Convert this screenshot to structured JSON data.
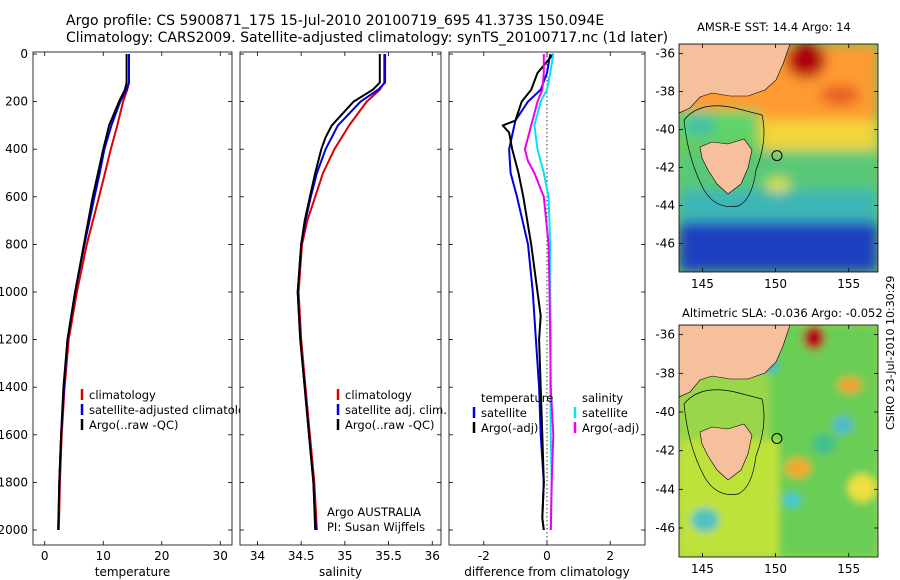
{
  "header": {
    "line1": "Argo profile: CS 5900871_175 15-Jul-2010 20100719_695 41.373S 150.094E",
    "line2": "Climatology: CARS2009. Satellite-adjusted climatology: synTS_20100717.nc (1d later)"
  },
  "maps": {
    "sst_title": "AMSR-E SST: 14.4 Argo: 14",
    "sla_title": "Altimetric SLA: -0.036 Argo: -0.052",
    "lat_ticks": [
      "-36",
      "-38",
      "-40",
      "-42",
      "-44",
      "-46"
    ],
    "lon_ticks": [
      "145",
      "150",
      "155"
    ],
    "float_marker": {
      "lon": 150.094,
      "lat": -41.373
    }
  },
  "credit": {
    "stamp": "CSIRO 23-Jul-2010 10:30:29",
    "org": "Argo AUSTRALIA",
    "pi": "PI: Susan Wijffels"
  },
  "colors": {
    "climatology": "#dd0000",
    "satellite_adj": "#0000dd",
    "argo": "#000000",
    "sal_satellite": "#00e5ee",
    "sal_argo": "#ee00ee"
  },
  "chart_data": [
    {
      "type": "line",
      "xlabel": "temperature",
      "xticks": [
        "0",
        "10",
        "20",
        "30"
      ],
      "xlim": [
        -2,
        32
      ],
      "yticks": [
        "0",
        "200",
        "400",
        "600",
        "800",
        "1000",
        "1200",
        "1400",
        "1600",
        "1800",
        "2000"
      ],
      "ylim": [
        0,
        2050
      ],
      "legend": [
        "climatology",
        "satellite-adjusted climatology",
        "Argo(..raw -QC)"
      ],
      "series": [
        {
          "name": "climatology",
          "pressure": [
            0,
            120,
            150,
            200,
            300,
            400,
            500,
            600,
            800,
            1000,
            1200,
            1400,
            1600,
            1800,
            2000
          ],
          "values": [
            14.4,
            14.4,
            14.1,
            13.4,
            12.4,
            11.3,
            10.3,
            9.3,
            7.2,
            5.5,
            4.1,
            3.4,
            2.9,
            2.6,
            2.4
          ]
        },
        {
          "name": "satellite-adjusted climatology",
          "pressure": [
            0,
            120,
            150,
            200,
            300,
            400,
            500,
            600,
            800,
            1000,
            1200,
            1400,
            1600,
            1800,
            2000
          ],
          "values": [
            14.4,
            14.4,
            14.0,
            12.9,
            11.4,
            10.2,
            9.4,
            8.5,
            6.8,
            5.2,
            3.9,
            3.3,
            2.8,
            2.5,
            2.3
          ]
        },
        {
          "name": "Argo(..raw -QC)",
          "pressure": [
            0,
            120,
            150,
            200,
            300,
            350,
            400,
            500,
            600,
            800,
            1000,
            1200,
            1400,
            1600,
            1800,
            2000
          ],
          "values": [
            14.0,
            14.0,
            13.7,
            12.7,
            11.0,
            10.5,
            10.0,
            9.1,
            8.2,
            6.7,
            5.2,
            3.9,
            3.2,
            2.8,
            2.5,
            2.3
          ]
        }
      ]
    },
    {
      "type": "line",
      "xlabel": "salinity",
      "xticks": [
        "34",
        "34.5",
        "35",
        "35.5",
        "36"
      ],
      "xlim": [
        33.8,
        36.1
      ],
      "yticks": [
        "0",
        "200",
        "400",
        "600",
        "800",
        "1000",
        "1200",
        "1400",
        "1600",
        "1800",
        "2000"
      ],
      "ylim": [
        0,
        2050
      ],
      "legend": [
        "climatology",
        "satellite adj. clim.",
        "Argo(..raw -QC)"
      ],
      "series": [
        {
          "name": "climatology",
          "pressure": [
            0,
            120,
            150,
            200,
            300,
            400,
            500,
            600,
            700,
            800,
            1000,
            1200,
            1400,
            1600,
            1800,
            2000
          ],
          "values": [
            35.45,
            35.45,
            35.4,
            35.25,
            35.05,
            34.88,
            34.75,
            34.66,
            34.57,
            34.51,
            34.47,
            34.5,
            34.55,
            34.6,
            34.65,
            34.68
          ]
        },
        {
          "name": "satellite adj. clim.",
          "pressure": [
            0,
            120,
            150,
            200,
            300,
            400,
            500,
            600,
            700,
            800,
            1000,
            1200,
            1400,
            1600,
            1800,
            2000
          ],
          "values": [
            35.46,
            35.46,
            35.38,
            35.18,
            34.92,
            34.78,
            34.68,
            34.61,
            34.55,
            34.5,
            34.46,
            34.49,
            34.54,
            34.59,
            34.64,
            34.67
          ]
        },
        {
          "name": "Argo(..raw -QC)",
          "pressure": [
            0,
            120,
            150,
            200,
            300,
            350,
            400,
            500,
            600,
            700,
            800,
            1000,
            1200,
            1400,
            1600,
            1800,
            2000
          ],
          "values": [
            35.4,
            35.4,
            35.32,
            35.1,
            34.85,
            34.78,
            34.73,
            34.66,
            34.6,
            34.54,
            34.5,
            34.46,
            34.49,
            34.54,
            34.59,
            34.64,
            34.66
          ]
        }
      ]
    },
    {
      "type": "line",
      "xlabel": "difference from climatology",
      "xticks": [
        "-2",
        "0",
        "2"
      ],
      "xlim": [
        -3.1,
        3.1
      ],
      "yticks": [
        "0",
        "200",
        "400",
        "600",
        "800",
        "1000",
        "1200",
        "1400",
        "1600",
        "1800",
        "2000"
      ],
      "ylim": [
        0,
        2050
      ],
      "legend_left_title": "temperature",
      "legend_right_title": "salinity",
      "legend": [
        "satellite",
        "Argo(-adj)",
        "satellite",
        "Argo(-adj)"
      ],
      "series": [
        {
          "name": "temperature satellite",
          "pressure": [
            0,
            80,
            150,
            200,
            280,
            400,
            500,
            600,
            800,
            1000,
            1200,
            1400,
            1600,
            1800,
            1950,
            2000
          ],
          "values": [
            0.1,
            0.0,
            -0.2,
            -0.6,
            -1.0,
            -1.2,
            -1.15,
            -0.95,
            -0.6,
            -0.45,
            -0.35,
            -0.25,
            -0.2,
            -0.1,
            -0.15,
            -0.1
          ]
        },
        {
          "name": "temperature Argo(-adj)",
          "pressure": [
            0,
            80,
            150,
            200,
            280,
            300,
            330,
            400,
            500,
            600,
            800,
            1000,
            1100,
            1200,
            1400,
            1600,
            1800,
            1950,
            2000
          ],
          "values": [
            0.2,
            -0.3,
            -0.5,
            -0.8,
            -1.0,
            -1.4,
            -1.2,
            -1.1,
            -0.9,
            -0.75,
            -0.5,
            -0.3,
            -0.2,
            -0.25,
            -0.2,
            -0.15,
            -0.1,
            -0.15,
            -0.1
          ]
        },
        {
          "name": "salinity satellite",
          "pressure": [
            0,
            80,
            150,
            200,
            300,
            400,
            500,
            600,
            800,
            1000,
            1200,
            1400,
            1600,
            1800,
            2000
          ],
          "values": [
            0.2,
            0.1,
            0.0,
            -0.2,
            -0.4,
            -0.3,
            -0.1,
            0.05,
            0.1,
            0.1,
            0.12,
            0.1,
            0.12,
            0.15,
            0.12
          ]
        },
        {
          "name": "salinity Argo(-adj)",
          "pressure": [
            0,
            80,
            150,
            200,
            300,
            400,
            450,
            500,
            600,
            800,
            1000,
            1200,
            1400,
            1600,
            1800,
            2000
          ],
          "values": [
            -0.1,
            -0.1,
            -0.15,
            -0.3,
            -0.5,
            -0.7,
            -0.6,
            -0.4,
            -0.1,
            0.05,
            0.08,
            0.1,
            0.12,
            0.2,
            0.15,
            0.12
          ]
        }
      ]
    }
  ]
}
